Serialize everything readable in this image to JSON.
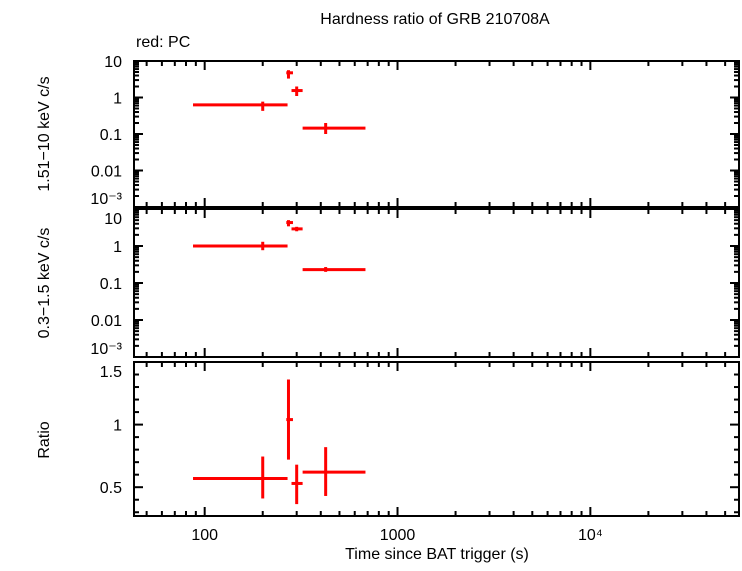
{
  "chart_data": [
    {
      "type": "scatter",
      "title": "Hardness ratio of GRB 210708A",
      "legend_note": "red: PC",
      "ylabel": "1.51−10 keV c/s",
      "yscale": "log",
      "ylim": [
        0.001,
        10
      ],
      "yticks": [
        "10",
        "1",
        "0.1",
        "0.01",
        "10⁻³"
      ],
      "ytick_values": [
        10,
        1,
        0.1,
        0.01,
        0.001
      ],
      "color": "#ff0000",
      "points": [
        {
          "x": 200,
          "xlo": 87,
          "xhi": 269,
          "y": 0.63,
          "ylo": 0.43,
          "yhi": 0.77
        },
        {
          "x": 272,
          "xlo": 265,
          "xhi": 287,
          "y": 4.75,
          "ylo": 3.3,
          "yhi": 5.6
        },
        {
          "x": 300,
          "xlo": 282,
          "xhi": 322,
          "y": 1.55,
          "ylo": 1.1,
          "yhi": 2.0
        },
        {
          "x": 424,
          "xlo": 322,
          "xhi": 682,
          "y": 0.145,
          "ylo": 0.1,
          "yhi": 0.2
        }
      ]
    },
    {
      "type": "scatter",
      "ylabel": "0.3−1.5 keV c/s",
      "yscale": "log",
      "ylim": [
        0.001,
        10
      ],
      "yticks": [
        "10",
        "1",
        "0.1",
        "0.01",
        "10⁻³"
      ],
      "ytick_values": [
        10,
        1,
        0.1,
        0.01,
        0.001
      ],
      "color": "#ff0000",
      "points": [
        {
          "x": 200,
          "xlo": 87,
          "xhi": 269,
          "y": 1.0,
          "ylo": 0.77,
          "yhi": 1.3
        },
        {
          "x": 272,
          "xlo": 265,
          "xhi": 287,
          "y": 4.3,
          "ylo": 3.4,
          "yhi": 5.0
        },
        {
          "x": 300,
          "xlo": 282,
          "xhi": 322,
          "y": 2.9,
          "ylo": 2.5,
          "yhi": 3.3
        },
        {
          "x": 424,
          "xlo": 322,
          "xhi": 682,
          "y": 0.23,
          "ylo": 0.2,
          "yhi": 0.27
        }
      ]
    },
    {
      "type": "scatter",
      "ylabel": "Ratio",
      "xlabel": "Time since BAT trigger (s)",
      "xscale": "log",
      "xlim": [
        43,
        59000
      ],
      "xticks": [
        "100",
        "1000",
        "10⁴"
      ],
      "xtick_values": [
        100,
        1000,
        10000
      ],
      "yscale": "linear",
      "ylim": [
        0.27,
        1.5
      ],
      "yticks": [
        "1.5",
        "1",
        "0.5"
      ],
      "ytick_values": [
        1.5,
        1,
        0.5
      ],
      "color": "#ff0000",
      "points": [
        {
          "x": 200,
          "xlo": 87,
          "xhi": 269,
          "y": 0.57,
          "ylo": 0.41,
          "yhi": 0.745
        },
        {
          "x": 272,
          "xlo": 265,
          "xhi": 287,
          "y": 1.04,
          "ylo": 0.72,
          "yhi": 1.36
        },
        {
          "x": 300,
          "xlo": 282,
          "xhi": 322,
          "y": 0.53,
          "ylo": 0.365,
          "yhi": 0.68
        },
        {
          "x": 424,
          "xlo": 322,
          "xhi": 682,
          "y": 0.62,
          "ylo": 0.43,
          "yhi": 0.82
        }
      ]
    }
  ]
}
